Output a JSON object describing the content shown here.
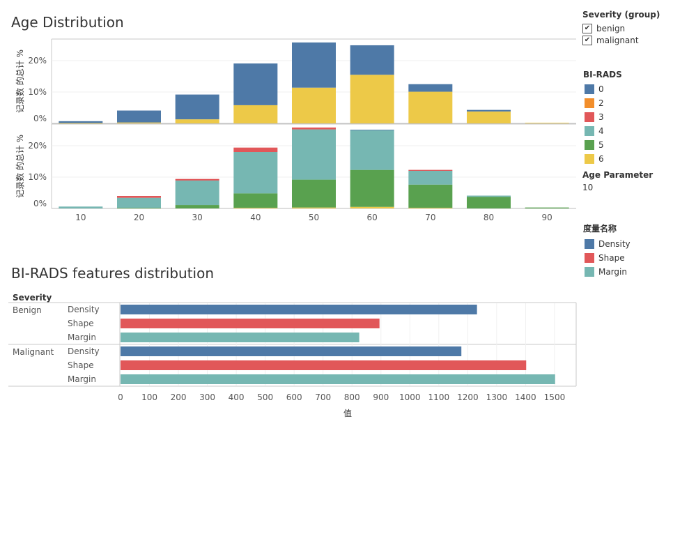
{
  "age_title": "Age Distribution",
  "birads_title": "BI-RADS features distribution",
  "legend_severity": {
    "title": "Severity (group)",
    "items": [
      {
        "label": "benign",
        "checked": true
      },
      {
        "label": "malignant",
        "checked": true
      }
    ]
  },
  "legend_birads": {
    "title": "BI-RADS",
    "items": [
      {
        "label": "0",
        "color": "#4e79a7"
      },
      {
        "label": "2",
        "color": "#f28e2b"
      },
      {
        "label": "3",
        "color": "#e15759"
      },
      {
        "label": "4",
        "color": "#76b7b2"
      },
      {
        "label": "5",
        "color": "#59a14f"
      },
      {
        "label": "6",
        "color": "#edc948"
      }
    ]
  },
  "age_parameter": {
    "title": "Age Parameter",
    "value": "10"
  },
  "legend_measure": {
    "title": "度量名称",
    "items": [
      {
        "label": "Density",
        "color": "#4e79a7"
      },
      {
        "label": "Shape",
        "color": "#e15759"
      },
      {
        "label": "Margin",
        "color": "#76b7b2"
      }
    ]
  },
  "chart_data": [
    {
      "type": "bar",
      "stacked": true,
      "title": "Age Distribution",
      "panel": "benign",
      "ylabel": "记录数 的总计 %",
      "categories": [
        "10",
        "20",
        "30",
        "40",
        "50",
        "60",
        "70",
        "80",
        "90"
      ],
      "yticks": [
        "0%",
        "10%",
        "20%"
      ],
      "ylim": [
        0,
        26
      ],
      "series": [
        {
          "name": "6",
          "color": "#edc948",
          "values": [
            0.1,
            0.3,
            1.3,
            5.8,
            11.4,
            15.5,
            10.1,
            3.8,
            0.2
          ]
        },
        {
          "name": "0",
          "color": "#4e79a7",
          "values": [
            0.6,
            3.8,
            7.9,
            13.3,
            14.4,
            9.4,
            2.4,
            0.5,
            0
          ]
        }
      ]
    },
    {
      "type": "bar",
      "stacked": true,
      "panel": "malignant",
      "ylabel": "记录数 的总计 %",
      "categories": [
        "10",
        "20",
        "30",
        "40",
        "50",
        "60",
        "70",
        "80",
        "90"
      ],
      "yticks": [
        "0%",
        "10%",
        "20%"
      ],
      "ylim": [
        0,
        26
      ],
      "xticks": [
        "10",
        "20",
        "30",
        "40",
        "50",
        "60",
        "70",
        "80",
        "90"
      ],
      "series": [
        {
          "name": "6",
          "color": "#edc948",
          "values": [
            0,
            0,
            0,
            0.2,
            0.3,
            0.5,
            0.2,
            0,
            0
          ]
        },
        {
          "name": "5",
          "color": "#59a14f",
          "values": [
            0,
            0.2,
            1.1,
            4.6,
            8.9,
            11.8,
            7.4,
            3.7,
            0.3
          ]
        },
        {
          "name": "4",
          "color": "#76b7b2",
          "values": [
            0.6,
            3.2,
            7.8,
            13.2,
            16.0,
            12.6,
            4.4,
            0.4,
            0
          ]
        },
        {
          "name": "3",
          "color": "#e15759",
          "values": [
            0,
            0.6,
            0.5,
            1.4,
            0.6,
            0,
            0.3,
            0,
            0
          ]
        },
        {
          "name": "0",
          "color": "#4e79a7",
          "values": [
            0,
            0,
            0,
            0,
            0,
            0.2,
            0,
            0,
            0
          ]
        }
      ]
    },
    {
      "type": "bar",
      "orientation": "horizontal",
      "title": "BI-RADS features distribution",
      "row_header": "Severity",
      "xlabel": "值",
      "xlim": [
        0,
        1530
      ],
      "xticks": [
        "0",
        "100",
        "200",
        "300",
        "400",
        "500",
        "600",
        "700",
        "800",
        "900",
        "1000",
        "1100",
        "1200",
        "1300",
        "1400",
        "1500"
      ],
      "groups": [
        {
          "name": "Benign",
          "bars": [
            {
              "label": "Density",
              "value": 1232,
              "color": "#4e79a7"
            },
            {
              "label": "Shape",
              "value": 895,
              "color": "#e15759"
            },
            {
              "label": "Margin",
              "value": 825,
              "color": "#76b7b2"
            }
          ]
        },
        {
          "name": "Malignant",
          "bars": [
            {
              "label": "Density",
              "value": 1178,
              "color": "#4e79a7"
            },
            {
              "label": "Shape",
              "value": 1402,
              "color": "#e15759"
            },
            {
              "label": "Margin",
              "value": 1502,
              "color": "#76b7b2"
            }
          ]
        }
      ]
    }
  ]
}
